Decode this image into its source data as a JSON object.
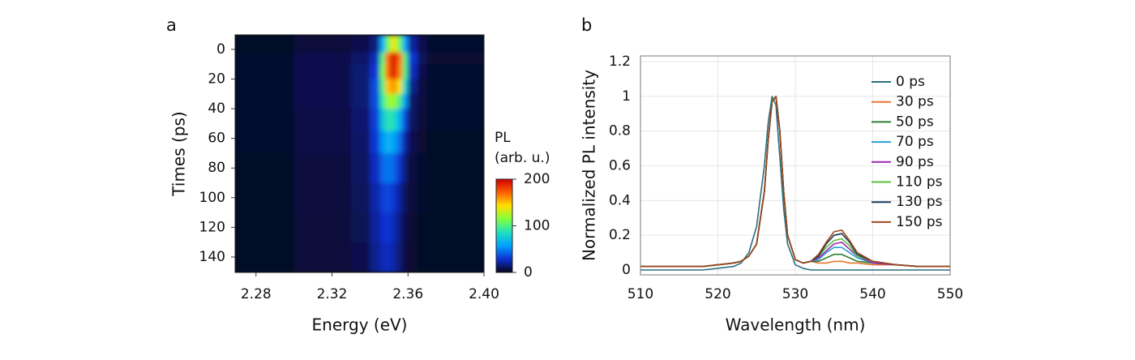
{
  "chart_data": [
    {
      "type": "heatmap",
      "panel_label": "a",
      "x_label": "Energy (eV)",
      "y_label": "Times (ps)",
      "colorbar_label": [
        "PL",
        "(arb. u.)"
      ],
      "x_edges": [
        2.269,
        2.3,
        2.33,
        2.34,
        2.345,
        2.348,
        2.351,
        2.354,
        2.357,
        2.36,
        2.365,
        2.37,
        2.4
      ],
      "y_edges": [
        -9.8,
        2,
        10,
        20,
        30,
        40,
        55,
        70,
        90,
        110,
        130,
        150.4
      ],
      "values": [
        [
          2,
          5,
          8,
          15,
          60,
          110,
          140,
          110,
          60,
          20,
          8,
          3
        ],
        [
          3,
          8,
          12,
          25,
          100,
          170,
          200,
          170,
          100,
          30,
          10,
          4
        ],
        [
          3,
          8,
          14,
          30,
          110,
          170,
          195,
          165,
          100,
          25,
          8,
          3
        ],
        [
          3,
          8,
          14,
          35,
          100,
          150,
          160,
          140,
          80,
          18,
          6,
          3
        ],
        [
          3,
          8,
          14,
          35,
          90,
          120,
          120,
          100,
          55,
          12,
          6,
          3
        ],
        [
          3,
          7,
          13,
          32,
          70,
          90,
          85,
          65,
          35,
          10,
          5,
          3
        ],
        [
          3,
          7,
          12,
          30,
          55,
          65,
          60,
          45,
          22,
          8,
          4,
          2
        ],
        [
          2,
          6,
          11,
          26,
          42,
          48,
          42,
          30,
          14,
          6,
          3,
          2
        ],
        [
          2,
          6,
          10,
          22,
          32,
          35,
          30,
          20,
          10,
          5,
          3,
          2
        ],
        [
          2,
          5,
          9,
          20,
          28,
          30,
          25,
          16,
          8,
          4,
          2,
          2
        ],
        [
          2,
          5,
          8,
          18,
          24,
          26,
          22,
          14,
          7,
          4,
          2,
          2
        ]
      ],
      "xlim": [
        2.269,
        2.4
      ],
      "xticks": [
        2.28,
        2.32,
        2.36,
        {
          "value": 2.4,
          "label": "2.40"
        }
      ],
      "ylim": [
        150.4,
        -9.8
      ],
      "yticks": [
        0,
        20,
        40,
        60,
        80,
        100,
        120,
        140
      ],
      "clim": [
        0,
        200
      ],
      "cticks": [
        0,
        100,
        200
      ],
      "colormap": [
        "#05051a",
        "#1030d0",
        "#00a0ff",
        "#20e0c0",
        "#80ff40",
        "#ffe000",
        "#ff6000",
        "#d00000"
      ]
    },
    {
      "type": "line",
      "panel_label": "b",
      "x_label": "Wavelength (nm)",
      "y_label": "Normalized PL intensity",
      "x": [
        510,
        512,
        514,
        516,
        518,
        520,
        522,
        523,
        524,
        525,
        526,
        526.5,
        527,
        527.5,
        528,
        528.5,
        529,
        530,
        531,
        532,
        533,
        534,
        535,
        536,
        537,
        538,
        540,
        543,
        546,
        550
      ],
      "series": [
        {
          "name": "0 ps",
          "color": "#2a6f7f",
          "values": [
            0,
            0,
            0,
            0,
            0,
            0.01,
            0.02,
            0.04,
            0.1,
            0.25,
            0.6,
            0.85,
            1,
            0.95,
            0.65,
            0.35,
            0.15,
            0.03,
            0.01,
            0,
            0,
            0,
            0,
            0,
            0,
            0,
            0,
            0,
            0,
            0
          ]
        },
        {
          "name": "30 ps",
          "color": "#e8762c",
          "values": [
            0.02,
            0.02,
            0.02,
            0.02,
            0.02,
            0.03,
            0.04,
            0.05,
            0.08,
            0.15,
            0.45,
            0.75,
            0.97,
            1,
            0.8,
            0.45,
            0.2,
            0.06,
            0.04,
            0.05,
            0.04,
            0.04,
            0.05,
            0.05,
            0.04,
            0.04,
            0.03,
            0.03,
            0.02,
            0.02
          ]
        },
        {
          "name": "50 ps",
          "color": "#2e7d32",
          "values": [
            0.02,
            0.02,
            0.02,
            0.02,
            0.02,
            0.03,
            0.04,
            0.05,
            0.08,
            0.15,
            0.45,
            0.75,
            0.97,
            1,
            0.8,
            0.45,
            0.2,
            0.06,
            0.04,
            0.05,
            0.05,
            0.07,
            0.09,
            0.09,
            0.07,
            0.05,
            0.04,
            0.03,
            0.02,
            0.02
          ]
        },
        {
          "name": "70 ps",
          "color": "#2a9fd6",
          "values": [
            0.02,
            0.02,
            0.02,
            0.02,
            0.02,
            0.03,
            0.04,
            0.05,
            0.08,
            0.15,
            0.45,
            0.75,
            0.97,
            1,
            0.8,
            0.45,
            0.2,
            0.06,
            0.04,
            0.05,
            0.06,
            0.1,
            0.13,
            0.13,
            0.1,
            0.07,
            0.04,
            0.03,
            0.02,
            0.02
          ]
        },
        {
          "name": "90 ps",
          "color": "#9c27b0",
          "values": [
            0.02,
            0.02,
            0.02,
            0.02,
            0.02,
            0.03,
            0.04,
            0.05,
            0.08,
            0.15,
            0.45,
            0.75,
            0.97,
            1,
            0.8,
            0.45,
            0.2,
            0.06,
            0.04,
            0.05,
            0.07,
            0.11,
            0.15,
            0.16,
            0.12,
            0.08,
            0.04,
            0.03,
            0.02,
            0.02
          ]
        },
        {
          "name": "110 ps",
          "color": "#5bbf3a",
          "values": [
            0.02,
            0.02,
            0.02,
            0.02,
            0.02,
            0.03,
            0.04,
            0.05,
            0.08,
            0.15,
            0.45,
            0.75,
            0.97,
            1,
            0.8,
            0.45,
            0.2,
            0.06,
            0.04,
            0.05,
            0.08,
            0.13,
            0.17,
            0.18,
            0.14,
            0.08,
            0.05,
            0.03,
            0.02,
            0.02
          ]
        },
        {
          "name": "130 ps",
          "color": "#1a3a5a",
          "values": [
            0.02,
            0.02,
            0.02,
            0.02,
            0.02,
            0.03,
            0.04,
            0.05,
            0.08,
            0.15,
            0.45,
            0.75,
            0.97,
            1,
            0.8,
            0.45,
            0.2,
            0.06,
            0.04,
            0.05,
            0.08,
            0.15,
            0.2,
            0.21,
            0.16,
            0.09,
            0.05,
            0.03,
            0.02,
            0.02
          ]
        },
        {
          "name": "150 ps",
          "color": "#a0461a",
          "values": [
            0.02,
            0.02,
            0.02,
            0.02,
            0.02,
            0.03,
            0.04,
            0.05,
            0.08,
            0.15,
            0.45,
            0.75,
            0.97,
            1,
            0.8,
            0.45,
            0.2,
            0.06,
            0.04,
            0.05,
            0.09,
            0.16,
            0.22,
            0.23,
            0.17,
            0.1,
            0.05,
            0.03,
            0.02,
            0.02
          ]
        }
      ],
      "xlim": [
        510,
        550
      ],
      "xticks": [
        510,
        520,
        530,
        540,
        550
      ],
      "ylim": [
        -0.028,
        1.233
      ],
      "yticks": [
        0,
        0.2,
        0.4,
        0.6,
        0.8,
        1,
        1.2
      ],
      "grid": true,
      "legend": "upper right"
    }
  ]
}
